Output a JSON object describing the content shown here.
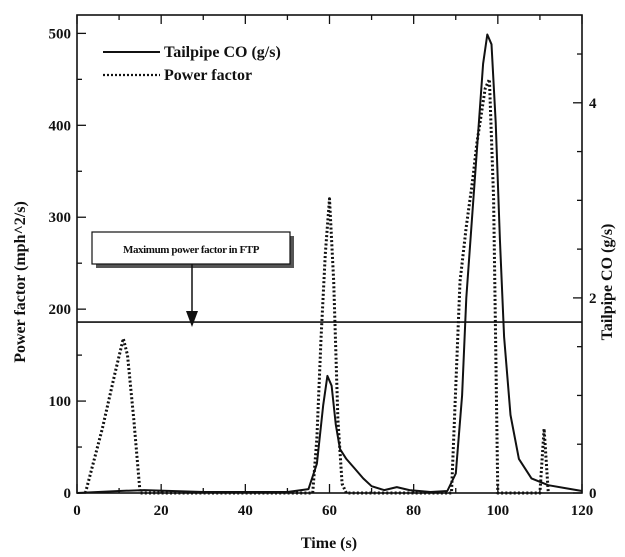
{
  "chart_data": {
    "type": "line",
    "title": "",
    "xlabel": "Time (s)",
    "ylabel_left": "Power factor (mph^2/s)",
    "ylabel_right": "Tailpipe CO (g/s)",
    "xlim": [
      0,
      120
    ],
    "ylim_left": [
      0,
      520
    ],
    "ylim_right": [
      0,
      4.9
    ],
    "x_ticks": [
      0,
      20,
      40,
      60,
      80,
      100,
      120
    ],
    "y_left_ticks": [
      0,
      100,
      200,
      300,
      400,
      500
    ],
    "y_right_ticks": [
      0,
      2,
      4
    ],
    "grid": false,
    "legend_position": "top-left",
    "series": [
      {
        "name": "Tailpipe CO (g/s)",
        "axis": "right",
        "style": "solid",
        "points": [
          [
            0,
            0
          ],
          [
            10,
            0.02
          ],
          [
            16,
            0.03
          ],
          [
            30,
            0.01
          ],
          [
            50,
            0.01
          ],
          [
            55,
            0.04
          ],
          [
            57,
            0.3
          ],
          [
            58.5,
            0.9
          ],
          [
            59.5,
            1.2
          ],
          [
            60.5,
            1.1
          ],
          [
            61.5,
            0.7
          ],
          [
            62.5,
            0.45
          ],
          [
            64,
            0.35
          ],
          [
            66,
            0.25
          ],
          [
            68,
            0.15
          ],
          [
            70,
            0.07
          ],
          [
            73,
            0.03
          ],
          [
            76,
            0.06
          ],
          [
            79,
            0.03
          ],
          [
            84,
            0.01
          ],
          [
            88,
            0.02
          ],
          [
            90,
            0.2
          ],
          [
            91.5,
            1.0
          ],
          [
            92.5,
            2.0
          ],
          [
            94,
            2.9
          ],
          [
            95.5,
            3.8
          ],
          [
            96.5,
            4.4
          ],
          [
            97.5,
            4.7
          ],
          [
            98.5,
            4.6
          ],
          [
            99.5,
            3.8
          ],
          [
            100.5,
            2.6
          ],
          [
            101.5,
            1.6
          ],
          [
            103,
            0.8
          ],
          [
            105,
            0.35
          ],
          [
            108,
            0.15
          ],
          [
            112,
            0.08
          ],
          [
            116,
            0.05
          ],
          [
            120,
            0.02
          ]
        ]
      },
      {
        "name": "Power factor",
        "axis": "left",
        "style": "dotted",
        "points": [
          [
            2,
            0
          ],
          [
            6,
            70
          ],
          [
            9,
            130
          ],
          [
            11,
            168
          ],
          [
            12,
            150
          ],
          [
            13.5,
            80
          ],
          [
            15,
            0
          ],
          [
            56,
            0
          ],
          [
            57,
            60
          ],
          [
            58,
            170
          ],
          [
            59,
            260
          ],
          [
            60,
            320
          ],
          [
            61,
            230
          ],
          [
            62,
            80
          ],
          [
            63,
            10
          ],
          [
            64,
            0
          ],
          [
            89,
            0
          ],
          [
            91,
            230
          ],
          [
            92.5,
            290
          ],
          [
            94,
            340
          ],
          [
            95,
            380
          ],
          [
            96,
            410
          ],
          [
            97,
            440
          ],
          [
            98,
            450
          ],
          [
            99,
            320
          ],
          [
            100,
            0
          ],
          [
            110,
            0
          ],
          [
            111,
            70
          ],
          [
            112,
            0
          ]
        ]
      }
    ],
    "reference_lines": [
      {
        "axis": "left",
        "value": 186,
        "label": "Maximum power factor in FTP"
      }
    ]
  }
}
